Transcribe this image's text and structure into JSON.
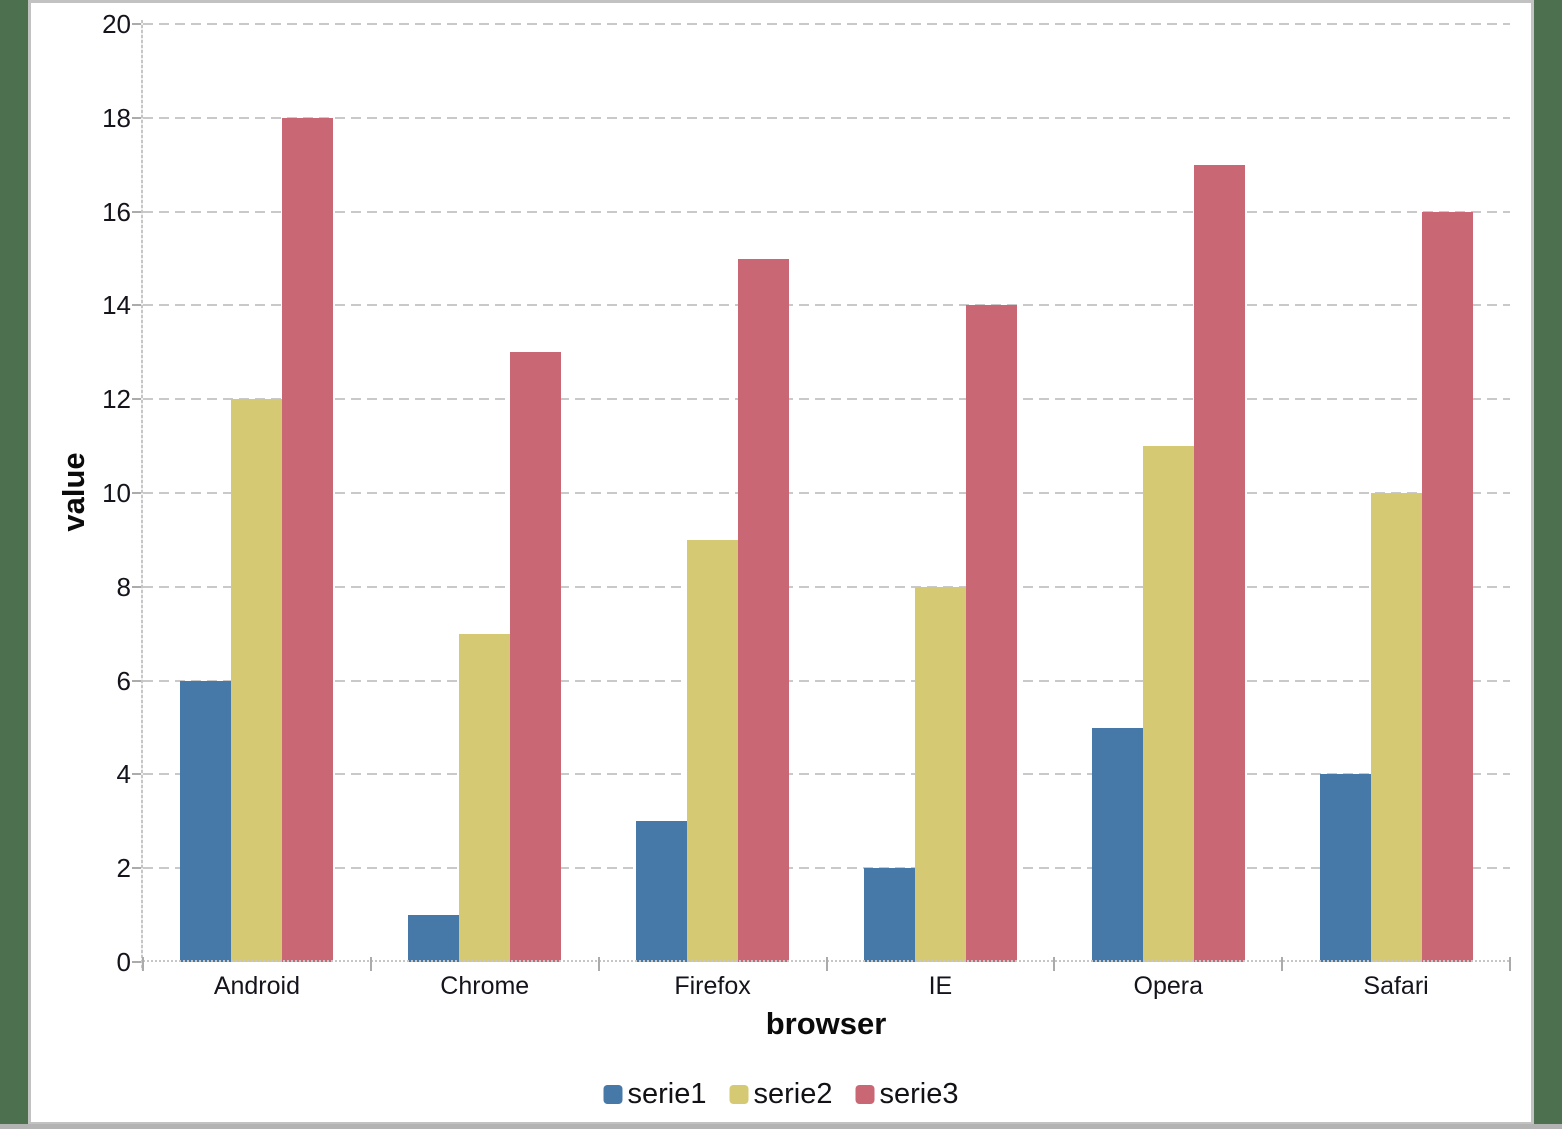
{
  "chart_data": {
    "type": "bar",
    "title": "",
    "categories": [
      "Android",
      "Chrome",
      "Firefox",
      "IE",
      "Opera",
      "Safari"
    ],
    "series": [
      {
        "name": "serie1",
        "color": "#4678A8",
        "values": [
          6,
          1,
          3,
          2,
          5,
          4
        ]
      },
      {
        "name": "serie2",
        "color": "#D6C973",
        "values": [
          12,
          7,
          9,
          8,
          11,
          10
        ]
      },
      {
        "name": "serie3",
        "color": "#CA6775",
        "values": [
          18,
          13,
          15,
          14,
          17,
          16
        ]
      }
    ],
    "xlabel": "browser",
    "ylabel": "value",
    "ylim": [
      0,
      20
    ],
    "ytick_step": 2,
    "grid": "horizontal-dashed",
    "legend_position": "bottom-center"
  },
  "colors": {
    "background_green": "#4D704F",
    "panel_background": "#FFFFFF",
    "panel_border": "#C2C2C2",
    "gridline": "#C9C9C9",
    "axis_line": "#C6C6C6",
    "tick_mark": "#ABABAB",
    "label_text": "#14141C"
  }
}
